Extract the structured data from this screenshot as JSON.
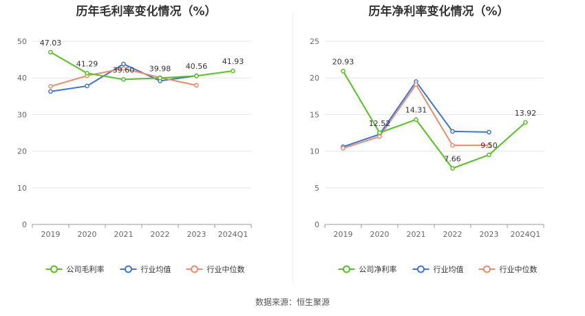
{
  "chart_data": [
    {
      "type": "line",
      "title": "历年毛利率变化情况（%）",
      "categories": [
        "2019",
        "2020",
        "2021",
        "2022",
        "2023",
        "2024Q1"
      ],
      "ylim": [
        0,
        50
      ],
      "yticks": [
        0,
        10,
        20,
        30,
        40,
        50
      ],
      "grid": true,
      "legend_position": "bottom",
      "series": [
        {
          "name": "公司毛利率",
          "color": "#52c41a",
          "values": [
            47.03,
            41.29,
            39.6,
            39.98,
            40.56,
            41.93
          ],
          "labels": [
            "47.03",
            "41.29",
            "39.60",
            "39.98",
            "40.56",
            "41.93"
          ]
        },
        {
          "name": "行业均值",
          "color": "#3a75d8",
          "values": [
            36.3,
            37.8,
            43.8,
            39.2,
            40.6,
            null
          ]
        },
        {
          "name": "行业中位数",
          "color": "#f08a67",
          "values": [
            37.7,
            40.6,
            42.6,
            40.1,
            38.0,
            null
          ]
        }
      ]
    },
    {
      "type": "line",
      "title": "历年净利率变化情况（%）",
      "categories": [
        "2019",
        "2020",
        "2021",
        "2022",
        "2023",
        "2024Q1"
      ],
      "ylim": [
        0,
        25
      ],
      "yticks": [
        0,
        5,
        10,
        15,
        20,
        25
      ],
      "grid": true,
      "legend_position": "bottom",
      "series": [
        {
          "name": "公司净利率",
          "color": "#52c41a",
          "values": [
            20.93,
            12.52,
            14.31,
            7.66,
            9.5,
            13.92
          ],
          "labels": [
            "20.93",
            "12.52",
            "14.31",
            "7.66",
            "9.50",
            "13.92"
          ]
        },
        {
          "name": "行业均值",
          "color": "#3a75d8",
          "values": [
            10.6,
            12.3,
            19.5,
            12.7,
            12.6,
            null
          ]
        },
        {
          "name": "行业中位数",
          "color": "#f08a67",
          "values": [
            10.4,
            12.0,
            19.1,
            10.8,
            10.8,
            null
          ]
        }
      ]
    }
  ],
  "source_text": "数据来源：恒生聚源"
}
